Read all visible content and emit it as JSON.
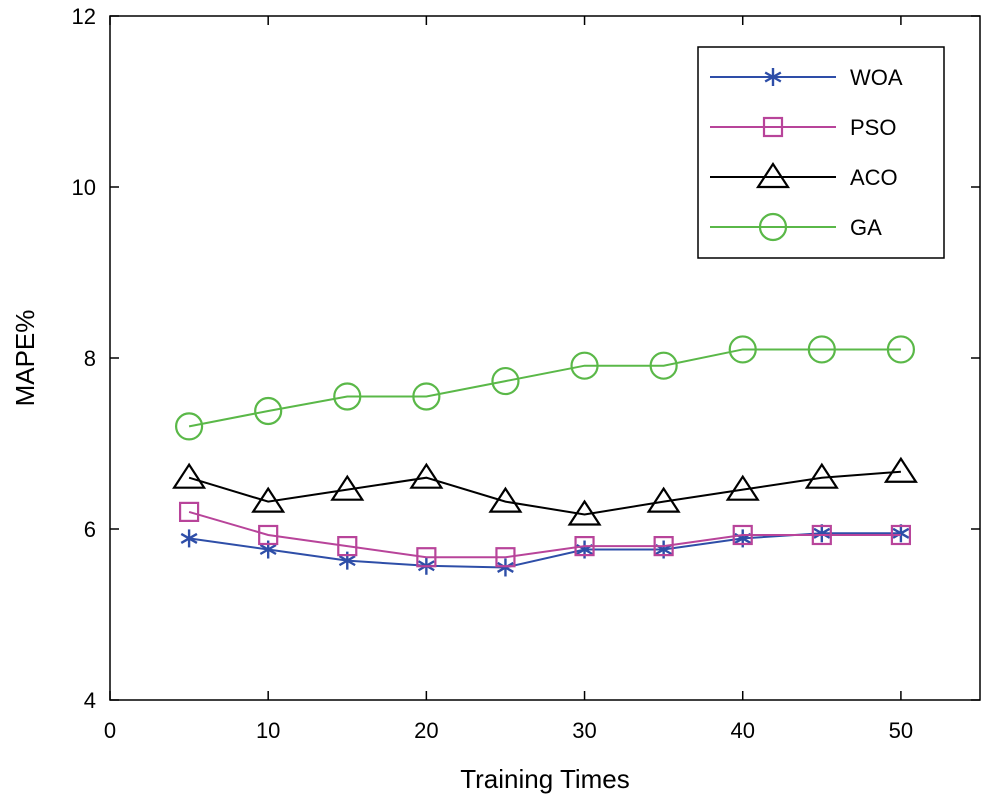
{
  "chart_data": {
    "type": "line",
    "title": "",
    "xlabel": "Training Times",
    "ylabel": "MAPE%",
    "xlim": [
      0,
      55
    ],
    "ylim": [
      4,
      12
    ],
    "x_ticks": [
      0,
      10,
      20,
      30,
      40,
      50
    ],
    "y_ticks": [
      4,
      6,
      8,
      10,
      12
    ],
    "x_tick_labels": [
      "0",
      "10",
      "20",
      "30",
      "40",
      "50"
    ],
    "y_tick_labels": [
      "4",
      "6",
      "8",
      "10",
      "12"
    ],
    "grid": false,
    "legend_position": "top-right",
    "x": [
      5,
      10,
      15,
      20,
      25,
      30,
      35,
      40,
      45,
      50
    ],
    "series": [
      {
        "name": "WOA",
        "color": "#2e4ea8",
        "marker": "asterisk",
        "values": [
          5.89,
          5.76,
          5.63,
          5.57,
          5.55,
          5.76,
          5.76,
          5.89,
          5.95,
          5.95
        ]
      },
      {
        "name": "PSO",
        "color": "#b8449a",
        "marker": "square",
        "values": [
          6.2,
          5.93,
          5.8,
          5.67,
          5.67,
          5.8,
          5.8,
          5.93,
          5.93,
          5.93
        ]
      },
      {
        "name": "ACO",
        "color": "#000000",
        "marker": "triangle",
        "values": [
          6.6,
          6.32,
          6.46,
          6.6,
          6.32,
          6.17,
          6.32,
          6.46,
          6.6,
          6.67
        ]
      },
      {
        "name": "GA",
        "color": "#5ab848",
        "marker": "circle",
        "values": [
          7.2,
          7.38,
          7.55,
          7.55,
          7.73,
          7.91,
          7.91,
          8.1,
          8.1,
          8.1
        ]
      }
    ]
  }
}
